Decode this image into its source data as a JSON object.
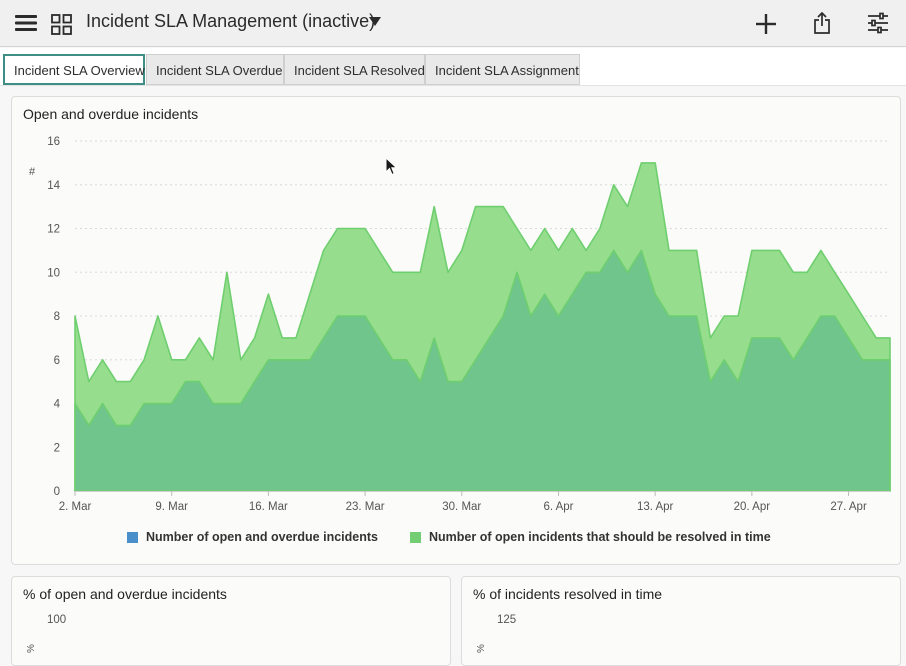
{
  "header": {
    "title": "Incident SLA Management (inactive)",
    "icons": [
      "menu-icon",
      "grid-icon",
      "caret-down-icon",
      "plus-icon",
      "share-icon",
      "filter-sliders-icon"
    ]
  },
  "tabs": [
    {
      "label": "Incident SLA Overview",
      "active": true
    },
    {
      "label": "Incident SLA Overdue",
      "active": false
    },
    {
      "label": "Incident SLA Resolved",
      "active": false
    },
    {
      "label": "Incident SLA Assignment",
      "active": false
    }
  ],
  "main_chart_card": {
    "title": "Open and overdue incidents"
  },
  "bottom_left_card": {
    "title": "% of open and overdue incidents",
    "top_tick": "100",
    "axis_symbol": "%"
  },
  "bottom_right_card": {
    "title": "% of incidents resolved in time",
    "top_tick": "125",
    "axis_symbol": "%"
  },
  "chart_data": {
    "type": "area",
    "stacked": false,
    "title": "Open and overdue incidents",
    "ylabel": "#",
    "ylim": [
      0,
      16
    ],
    "yticks": [
      "0",
      "2",
      "4",
      "6",
      "8",
      "10",
      "12",
      "14",
      "16"
    ],
    "x_start": "2. Mar",
    "x_end": "30. Apr",
    "x_tick_labels": [
      "2. Mar",
      "9. Mar",
      "16. Mar",
      "23. Mar",
      "30. Mar",
      "6. Apr",
      "13. Apr",
      "20. Apr",
      "27. Apr"
    ],
    "grid": true,
    "legend_position": "bottom-center",
    "series": [
      {
        "name": "Number of open incidents that should be resolved in time",
        "legend_color": "#73cd73",
        "fill": "#96dd8e",
        "values": [
          8,
          5,
          6,
          5,
          5,
          6,
          8,
          6,
          6,
          7,
          6,
          10,
          6,
          7,
          9,
          7,
          7,
          9,
          11,
          12,
          12,
          12,
          11,
          10,
          10,
          10,
          13,
          10,
          11,
          13,
          13,
          13,
          12,
          11,
          12,
          11,
          12,
          11,
          12,
          14,
          13,
          15,
          15,
          11,
          11,
          11,
          7,
          8,
          8,
          11,
          11,
          11,
          10,
          10,
          11,
          10,
          9,
          8,
          7,
          7
        ]
      },
      {
        "name": "Number of open and overdue incidents",
        "legend_color": "#4a8fc9",
        "fill": "#6fc58c",
        "values": [
          4,
          3,
          4,
          3,
          3,
          4,
          4,
          4,
          5,
          5,
          4,
          4,
          4,
          5,
          6,
          6,
          6,
          6,
          7,
          8,
          8,
          8,
          7,
          6,
          6,
          5,
          7,
          5,
          5,
          6,
          7,
          8,
          10,
          8,
          9,
          8,
          9,
          10,
          10,
          11,
          10,
          11,
          9,
          8,
          8,
          8,
          5,
          6,
          5,
          7,
          7,
          7,
          6,
          7,
          8,
          8,
          7,
          6,
          6,
          6
        ]
      }
    ],
    "colors": {
      "line": "#6fcf6f",
      "grid": "#d9d9d9",
      "axis_text": "#555555"
    }
  }
}
